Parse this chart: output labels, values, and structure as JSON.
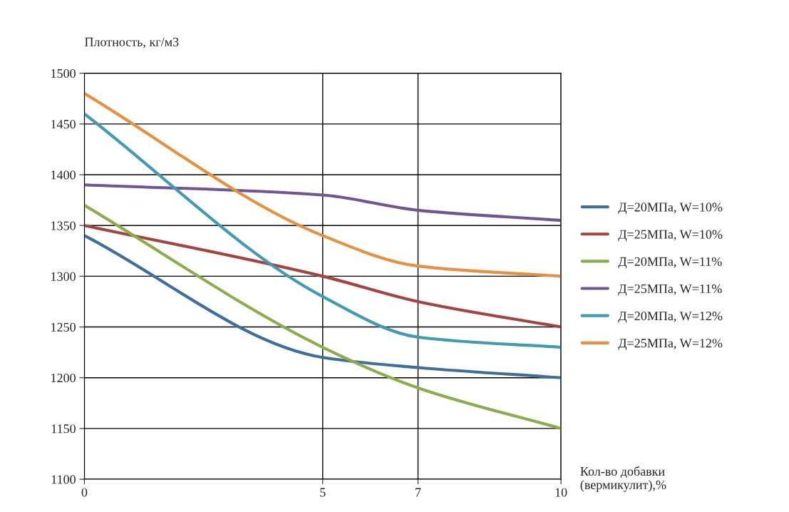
{
  "chart_data": {
    "type": "line",
    "ylabel": "Плотность, кг/м3",
    "xlabel": "Кол-во добавки\n(вермикулит),%",
    "x": [
      0,
      5,
      7,
      10
    ],
    "series": [
      {
        "name": "Д=20МПа, W=10%",
        "color": "#3d6f9c",
        "values": [
          1340,
          1220,
          1210,
          1200
        ]
      },
      {
        "name": "Д=25МПа, W=10%",
        "color": "#a6433f",
        "values": [
          1350,
          1300,
          1275,
          1250
        ]
      },
      {
        "name": "Д=20МПа, W=11%",
        "color": "#8cad4a",
        "values": [
          1370,
          1230,
          1190,
          1150
        ]
      },
      {
        "name": "Д=25МПа, W=11%",
        "color": "#6f5595",
        "values": [
          1390,
          1380,
          1365,
          1355
        ]
      },
      {
        "name": "Д=20МПа, W=12%",
        "color": "#3f9cb4",
        "values": [
          1460,
          1280,
          1240,
          1230
        ]
      },
      {
        "name": "Д=25МПа, W=12%",
        "color": "#e8903e",
        "values": [
          1480,
          1340,
          1310,
          1300
        ]
      }
    ],
    "xlim": [
      0,
      10
    ],
    "xticks": [
      0,
      5,
      7,
      10
    ],
    "ylim": [
      1100,
      1500
    ],
    "yticks": [
      1100,
      1150,
      1200,
      1250,
      1300,
      1350,
      1400,
      1450,
      1500
    ],
    "grid": true,
    "legend": "right",
    "marker": "none",
    "line_style": "solid"
  }
}
